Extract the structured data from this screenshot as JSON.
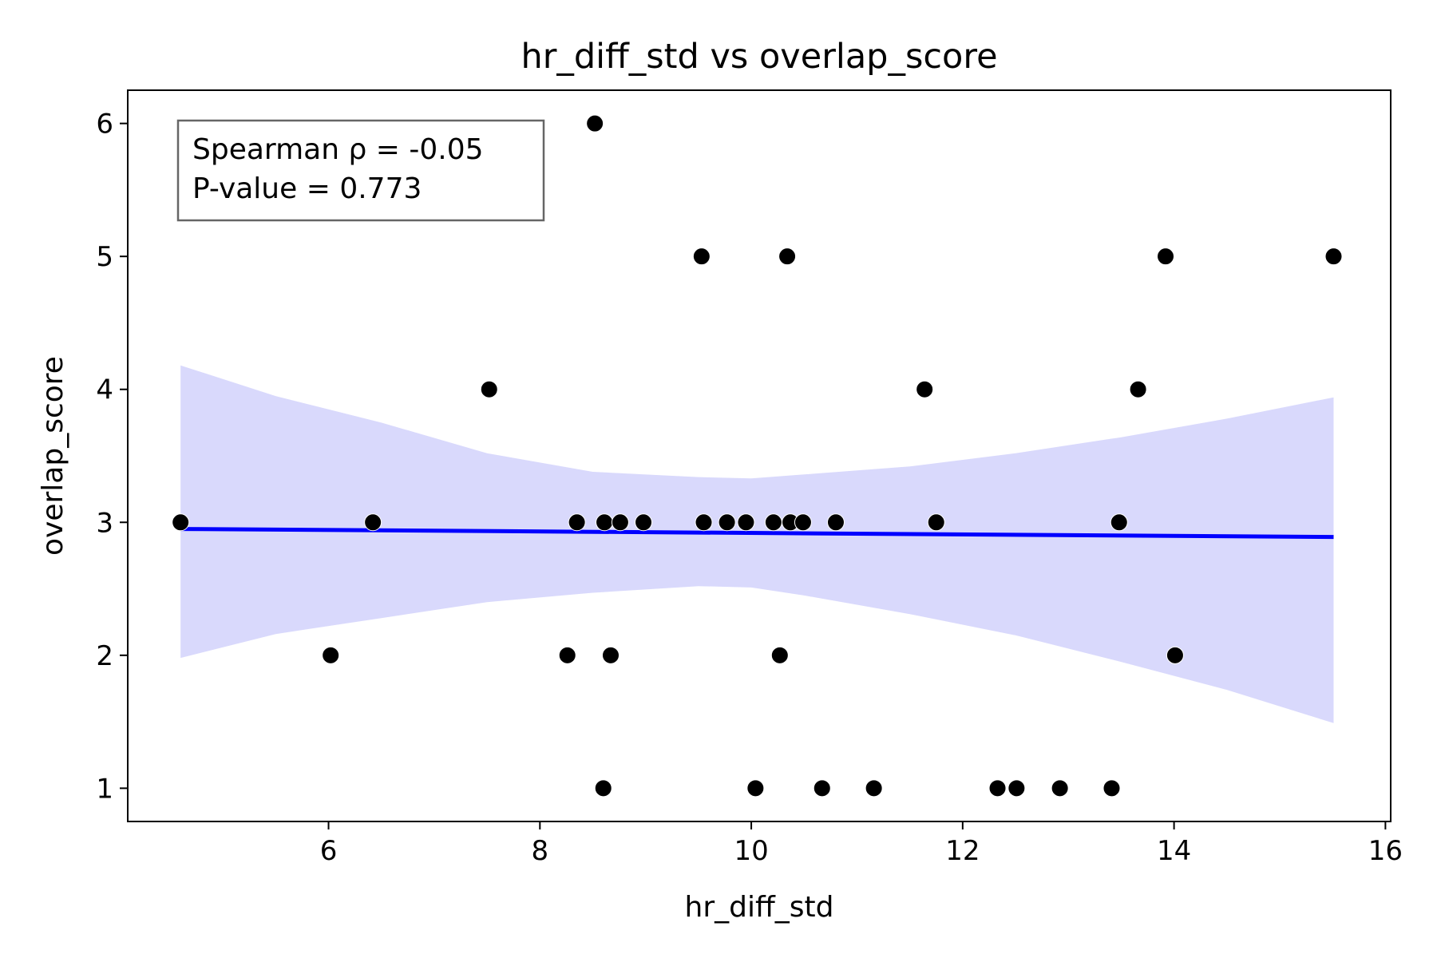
{
  "chart_data": {
    "type": "scatter",
    "title": "hr_diff_std vs overlap_score",
    "xlabel": "hr_diff_std",
    "ylabel": "overlap_score",
    "xlim": [
      4.1,
      16.05
    ],
    "ylim": [
      0.75,
      6.25
    ],
    "xticks": [
      6,
      8,
      10,
      12,
      14,
      16
    ],
    "yticks": [
      1,
      2,
      3,
      4,
      5,
      6
    ],
    "grid": false,
    "legend": "none",
    "annotation": {
      "lines": [
        "Spearman ρ = -0.05",
        "P-value = 0.773"
      ],
      "placement": "top-left"
    },
    "colors": {
      "points": "#000000",
      "regression_line": "#0000ff",
      "confidence_band": "#d9d9fc"
    },
    "points": [
      {
        "x": 4.6,
        "y": 3
      },
      {
        "x": 6.02,
        "y": 2
      },
      {
        "x": 6.42,
        "y": 3
      },
      {
        "x": 7.52,
        "y": 4
      },
      {
        "x": 8.26,
        "y": 2
      },
      {
        "x": 8.35,
        "y": 3
      },
      {
        "x": 8.52,
        "y": 6
      },
      {
        "x": 8.6,
        "y": 1
      },
      {
        "x": 8.61,
        "y": 3
      },
      {
        "x": 8.67,
        "y": 2
      },
      {
        "x": 8.76,
        "y": 3
      },
      {
        "x": 8.98,
        "y": 3
      },
      {
        "x": 9.53,
        "y": 5
      },
      {
        "x": 9.55,
        "y": 3
      },
      {
        "x": 9.77,
        "y": 3
      },
      {
        "x": 9.95,
        "y": 3
      },
      {
        "x": 10.04,
        "y": 1
      },
      {
        "x": 10.21,
        "y": 3
      },
      {
        "x": 10.27,
        "y": 2
      },
      {
        "x": 10.34,
        "y": 5
      },
      {
        "x": 10.37,
        "y": 3
      },
      {
        "x": 10.49,
        "y": 3
      },
      {
        "x": 10.67,
        "y": 1
      },
      {
        "x": 10.8,
        "y": 3
      },
      {
        "x": 11.16,
        "y": 1
      },
      {
        "x": 11.64,
        "y": 4
      },
      {
        "x": 11.75,
        "y": 3
      },
      {
        "x": 12.33,
        "y": 1
      },
      {
        "x": 12.51,
        "y": 1
      },
      {
        "x": 12.92,
        "y": 1
      },
      {
        "x": 13.41,
        "y": 1
      },
      {
        "x": 13.48,
        "y": 3
      },
      {
        "x": 13.66,
        "y": 4
      },
      {
        "x": 13.92,
        "y": 5
      },
      {
        "x": 14.01,
        "y": 2
      },
      {
        "x": 15.51,
        "y": 5
      }
    ],
    "regression": {
      "x": [
        4.6,
        15.51
      ],
      "y": [
        2.95,
        2.89
      ]
    },
    "confidence_band": {
      "x": [
        4.6,
        5.5,
        6.5,
        7.5,
        8.5,
        9.5,
        10.0,
        10.5,
        11.5,
        12.5,
        13.5,
        14.5,
        15.51
      ],
      "upper": [
        4.18,
        3.95,
        3.75,
        3.52,
        3.38,
        3.34,
        3.33,
        3.36,
        3.42,
        3.52,
        3.64,
        3.78,
        3.94
      ],
      "lower": [
        1.98,
        2.16,
        2.28,
        2.4,
        2.47,
        2.52,
        2.51,
        2.45,
        2.31,
        2.15,
        1.95,
        1.74,
        1.49
      ]
    }
  }
}
